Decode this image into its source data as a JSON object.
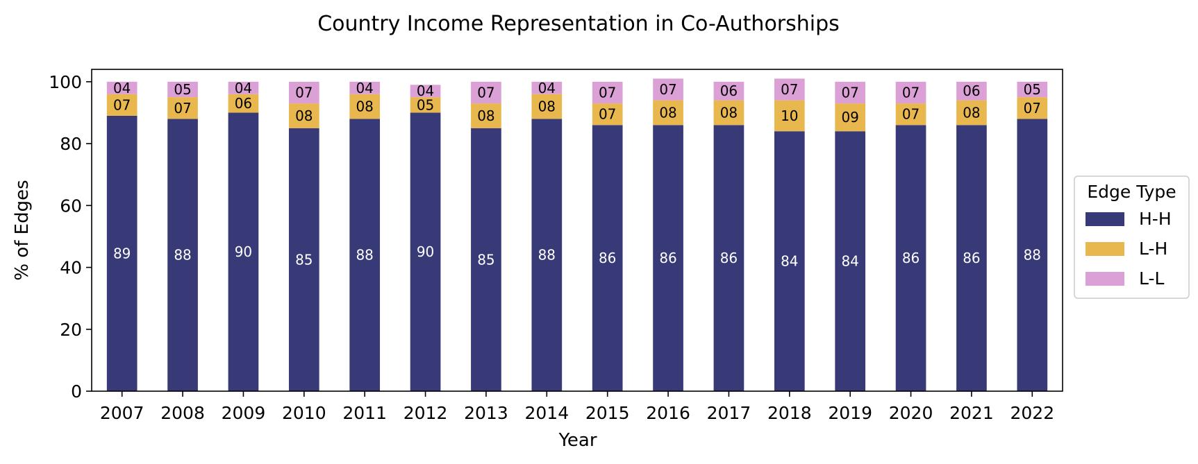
{
  "chart_data": {
    "type": "bar",
    "stacked": true,
    "title": "Country Income Representation in Co-Authorships",
    "xlabel": "Year",
    "ylabel": "% of Edges",
    "ylim": [
      0,
      104
    ],
    "yticks": [
      0,
      20,
      40,
      60,
      80,
      100
    ],
    "categories": [
      "2007",
      "2008",
      "2009",
      "2010",
      "2011",
      "2012",
      "2013",
      "2014",
      "2015",
      "2016",
      "2017",
      "2018",
      "2019",
      "2020",
      "2021",
      "2022"
    ],
    "series": [
      {
        "name": "H-H",
        "color": "#383a78",
        "label_color": "#ffffff",
        "values": [
          89,
          88,
          90,
          85,
          88,
          90,
          85,
          88,
          86,
          86,
          86,
          84,
          84,
          86,
          86,
          88
        ],
        "labels": [
          "89",
          "88",
          "90",
          "85",
          "88",
          "90",
          "85",
          "88",
          "86",
          "86",
          "86",
          "84",
          "84",
          "86",
          "86",
          "88"
        ]
      },
      {
        "name": "L-H",
        "color": "#e8b74e",
        "label_color": "#000000",
        "values": [
          7,
          7,
          6,
          8,
          8,
          5,
          8,
          8,
          7,
          8,
          8,
          10,
          9,
          7,
          8,
          7
        ],
        "labels": [
          "07",
          "07",
          "06",
          "08",
          "08",
          "05",
          "08",
          "08",
          "07",
          "08",
          "08",
          "10",
          "09",
          "07",
          "08",
          "07"
        ]
      },
      {
        "name": "L-L",
        "color": "#dba0d6",
        "label_color": "#000000",
        "values": [
          4,
          5,
          4,
          7,
          4,
          4,
          7,
          4,
          7,
          7,
          6,
          7,
          7,
          7,
          6,
          5
        ],
        "labels": [
          "04",
          "05",
          "04",
          "07",
          "04",
          "04",
          "07",
          "04",
          "07",
          "07",
          "06",
          "07",
          "07",
          "07",
          "06",
          "05"
        ]
      }
    ],
    "legend": {
      "title": "Edge Type",
      "placement": "right"
    },
    "grid": false
  }
}
